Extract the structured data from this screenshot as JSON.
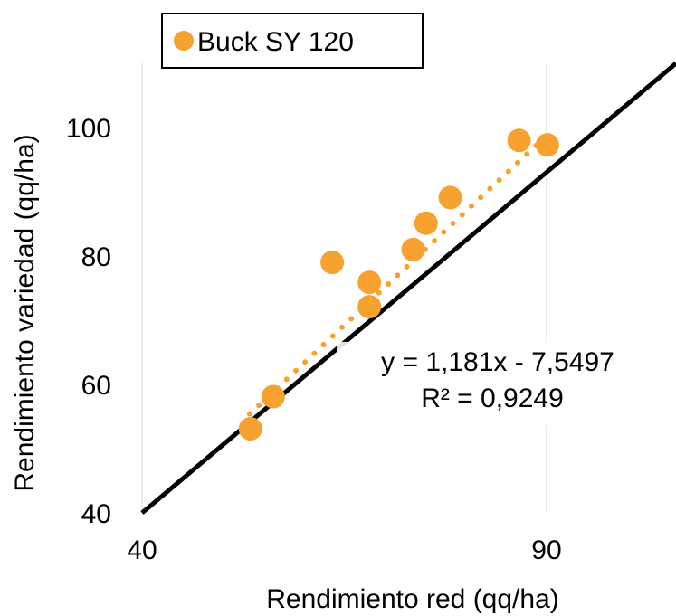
{
  "chart_data": {
    "type": "scatter",
    "xlabel": "Rendimiento red (qq/ha)",
    "ylabel": "Rendimiento variedad (qq/ha)",
    "xlim": [
      40,
      106
    ],
    "ylim": [
      40,
      110
    ],
    "x_ticks": [
      "40",
      "90"
    ],
    "x_tick_values": [
      40,
      90
    ],
    "y_ticks": [
      "40",
      "60",
      "80",
      "100"
    ],
    "y_tick_values": [
      40,
      60,
      80,
      100
    ],
    "grid": "vertical",
    "legend_position": "top-left",
    "series": [
      {
        "name": "Buck SY 120",
        "color": "#f7a12e",
        "points": [
          {
            "x": 53.4,
            "y": 53.1
          },
          {
            "x": 56.2,
            "y": 58.1
          },
          {
            "x": 63.5,
            "y": 79.0
          },
          {
            "x": 68.1,
            "y": 75.9
          },
          {
            "x": 68.1,
            "y": 72.1
          },
          {
            "x": 73.5,
            "y": 81.0
          },
          {
            "x": 75.1,
            "y": 85.1
          },
          {
            "x": 78.1,
            "y": 89.1
          },
          {
            "x": 86.6,
            "y": 98.0
          },
          {
            "x": 90.1,
            "y": 97.3
          }
        ]
      }
    ],
    "trendline": {
      "type": "linear",
      "slope": 1.181,
      "intercept": -7.5497,
      "x_range": [
        53.3,
        90.1
      ],
      "equation_text": "y = 1,181x - 7,5497",
      "r2_text": "R² = 0,9249",
      "color": "#f7a12e",
      "style": "dotted"
    },
    "reference_line": {
      "label": "",
      "color": "#000000",
      "points": [
        {
          "x": 40,
          "y": 40
        },
        {
          "x": 106,
          "y": 110
        }
      ]
    }
  }
}
